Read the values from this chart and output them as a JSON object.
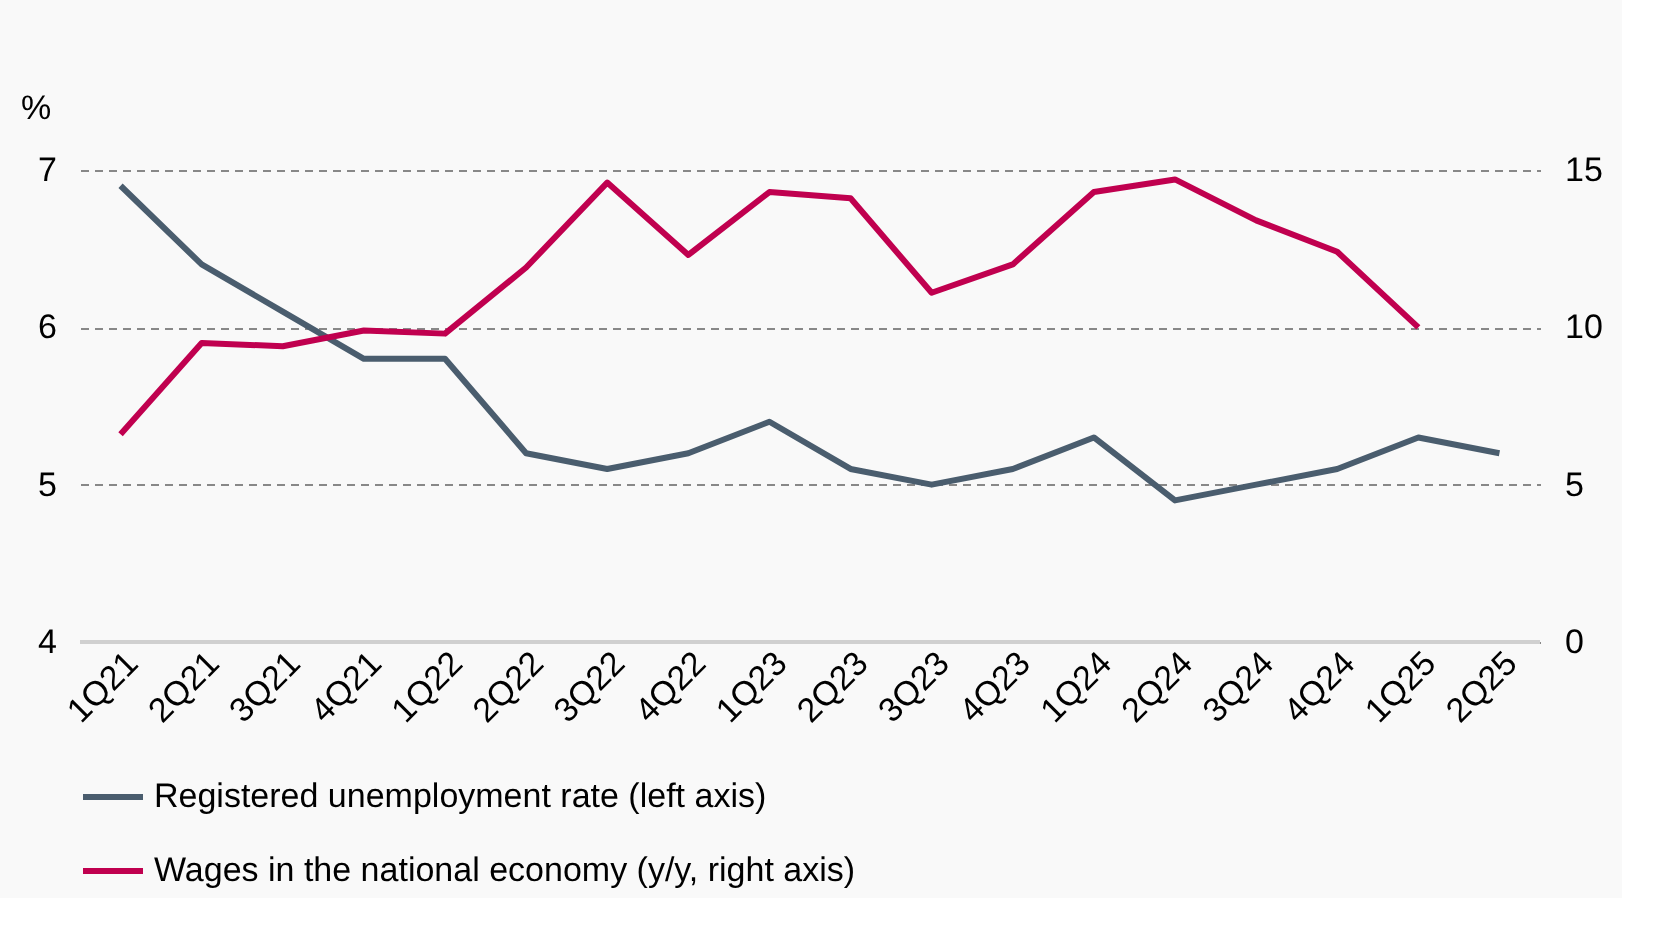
{
  "chart_data": {
    "type": "line",
    "ylabel": "%",
    "categories": [
      "1Q21",
      "2Q21",
      "3Q21",
      "4Q21",
      "1Q22",
      "2Q22",
      "3Q22",
      "4Q22",
      "1Q23",
      "2Q23",
      "3Q23",
      "4Q23",
      "1Q24",
      "2Q24",
      "3Q24",
      "4Q24",
      "1Q25",
      "2Q25"
    ],
    "series": [
      {
        "name": "Registered unemployment rate (left axis)",
        "color": "#4a5d6e",
        "values": [
          6.9,
          6.4,
          6.1,
          5.8,
          5.8,
          5.2,
          5.1,
          5.2,
          5.4,
          5.1,
          5.0,
          5.1,
          5.3,
          4.9,
          5.0,
          5.1,
          5.3,
          5.2
        ]
      },
      {
        "name": "Wages in the national economy (y/y, right axis)",
        "color": "#c0004f",
        "axis": "y2",
        "values": [
          6.6,
          9.5,
          9.4,
          9.9,
          9.8,
          11.9,
          14.6,
          12.3,
          14.3,
          14.1,
          11.1,
          12.0,
          14.3,
          14.7,
          13.4,
          12.4,
          10.0,
          null
        ]
      }
    ],
    "ylim": [
      4,
      7
    ],
    "yticks": [
      4,
      5,
      6,
      7
    ],
    "y2lim": [
      0,
      15
    ],
    "y2ticks": [
      0,
      5,
      10,
      15
    ],
    "grid": "y",
    "legend": "bottom",
    "marker": "none",
    "line_style": "solid"
  }
}
